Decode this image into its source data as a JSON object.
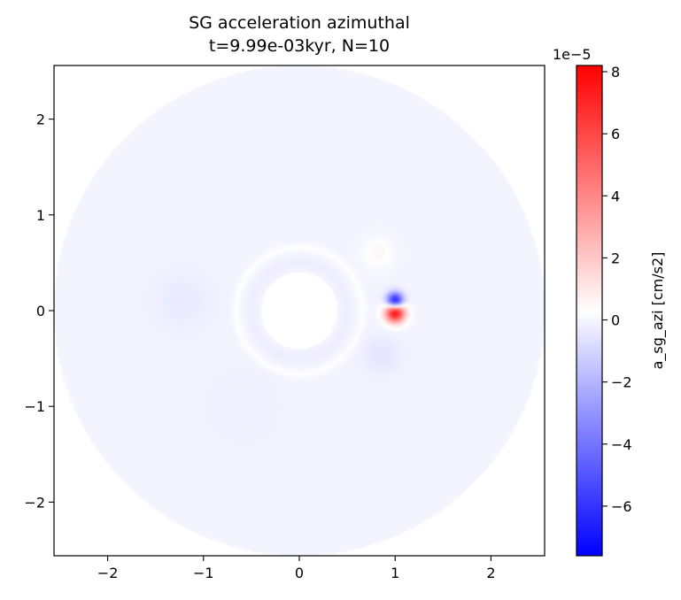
{
  "chart_data": {
    "type": "heatmap",
    "title_lines": [
      "SG acceleration azimuthal",
      "t=9.99e-03kyr, N=10"
    ],
    "xlabel": "",
    "ylabel": "",
    "xlim": [
      -2.56,
      2.56
    ],
    "ylim": [
      -2.56,
      2.56
    ],
    "x_ticks": [
      -2,
      -1,
      0,
      1,
      2
    ],
    "y_ticks": [
      -2,
      -1,
      0,
      1,
      2
    ],
    "x_tick_labels": [
      "−2",
      "−1",
      "0",
      "1",
      "2"
    ],
    "y_tick_labels": [
      "−2",
      "−1",
      "0",
      "1",
      "2"
    ],
    "disk": {
      "inner_radius": 0.4,
      "outer_radius": 2.56,
      "background_value": -0.03
    },
    "features": [
      {
        "kind": "blob",
        "x": 1.0,
        "y": 0.1,
        "value": -7.5,
        "sigma": 0.06
      },
      {
        "kind": "blob",
        "x": 1.0,
        "y": -0.02,
        "value": 8.2,
        "sigma": 0.07
      },
      {
        "kind": "blob",
        "x": 0.82,
        "y": 0.6,
        "value": 0.6,
        "sigma": 0.1
      },
      {
        "kind": "blob",
        "x": 0.86,
        "y": -0.46,
        "value": -0.5,
        "sigma": 0.14
      },
      {
        "kind": "blob",
        "x": -1.22,
        "y": 0.1,
        "value": -0.35,
        "sigma": 0.22
      },
      {
        "kind": "blob",
        "x": -0.6,
        "y": -1.0,
        "value": -0.15,
        "sigma": 0.3
      },
      {
        "kind": "ring",
        "radius": 0.5,
        "value": -0.2,
        "width": 0.04
      },
      {
        "kind": "ring",
        "radius": 0.66,
        "value": 0.3,
        "width": 0.03
      }
    ],
    "colorbar": {
      "label": "a_sg_azi [cm/s2]",
      "scale_label": "1e−5",
      "colormap": "bwr",
      "min": -7.6,
      "max": 8.2,
      "ticks": [
        -6,
        -4,
        -2,
        0,
        2,
        4,
        6,
        8
      ],
      "tick_labels": [
        "−6",
        "−4",
        "−2",
        "0",
        "2",
        "4",
        "6",
        "8"
      ]
    }
  }
}
